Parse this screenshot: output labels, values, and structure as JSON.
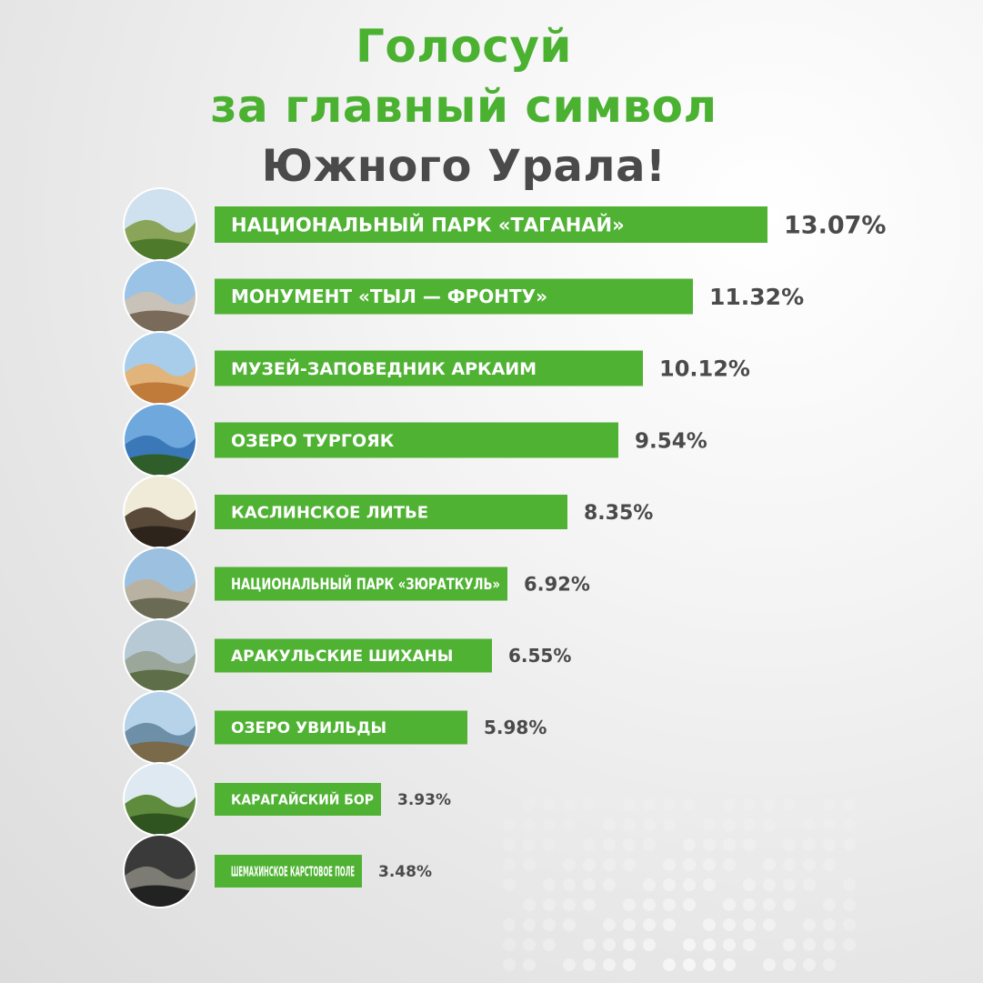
{
  "title": {
    "line1": "Голосуй",
    "line2": "за главный символ",
    "line3": "Южного Урала!"
  },
  "colors": {
    "bar": "#4fb233",
    "bar_text": "#ffffff",
    "title_green": "#4bb131",
    "title_dark": "#4a4a4a",
    "value_text": "#4a4a4a"
  },
  "chart_data": {
    "type": "bar",
    "orientation": "horizontal",
    "categories": [
      "НАЦИОНАЛЬНЫЙ ПАРК «ТАГАНАЙ»",
      "МОНУМЕНТ «ТЫЛ — ФРОНТУ»",
      "МУЗЕЙ-ЗАПОВЕДНИК АРКАИМ",
      "ОЗЕРО ТУРГОЯК",
      "КАСЛИНСКОЕ ЛИТЬЕ",
      "НАЦИОНАЛЬНЫЙ ПАРК «ЗЮРАТКУЛЬ»",
      "АРАКУЛЬСКИЕ ШИХАНЫ",
      "ОЗЕРО УВИЛЬДЫ",
      "КАРАГАЙСКИЙ БОР",
      "ШЕМАХИНСКОЕ КАРСТОВОЕ ПОЛЕ"
    ],
    "values": [
      13.07,
      11.32,
      10.12,
      9.54,
      8.35,
      6.92,
      6.55,
      5.98,
      3.93,
      3.48
    ],
    "value_labels": [
      "13.07%",
      "11.32%",
      "10.12%",
      "9.54%",
      "8.35%",
      "6.92%",
      "6.55%",
      "5.98%",
      "3.93%",
      "3.48%"
    ],
    "thumbnails": [
      "mountain-ridge-photo",
      "monument-statue-photo",
      "steppe-hills-photo",
      "lake-photo",
      "cast-iron-horses-photo",
      "rocky-peak-photo",
      "granite-rocks-forest-photo",
      "lake-shore-photo",
      "pine-forest-photo",
      "karst-cave-photo"
    ],
    "grid": false,
    "legend": "none"
  }
}
